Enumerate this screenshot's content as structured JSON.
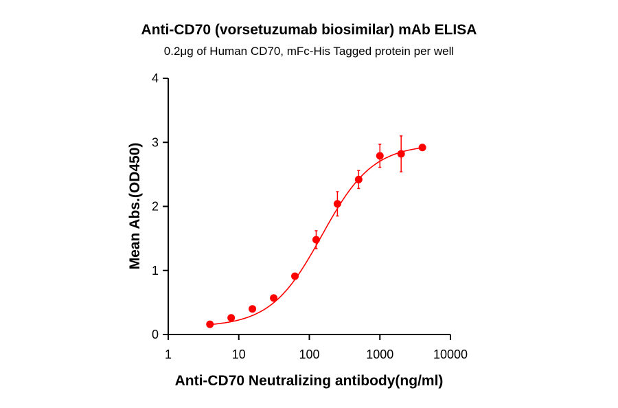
{
  "chart_data": {
    "type": "scatter",
    "title": "Anti-CD70 (vorsetuzumab biosimilar) mAb ELISA",
    "subtitle": "0.2μg of Human CD70, mFc-His Tagged protein per well",
    "xlabel": "Anti-CD70 Neutralizing antibody(ng/ml)",
    "ylabel": "Mean Abs.(OD450)",
    "x_scale": "log",
    "xlim": [
      1,
      10000
    ],
    "ylim": [
      0,
      4
    ],
    "x_ticks": [
      "1",
      "10",
      "100",
      "1000",
      "10000"
    ],
    "y_ticks": [
      "0",
      "1",
      "2",
      "3",
      "4"
    ],
    "grid": false,
    "color": "#ff0000",
    "x": [
      3.9,
      7.8,
      15.6,
      31.25,
      62.5,
      125,
      250,
      500,
      1000,
      2000,
      4000
    ],
    "y": [
      0.16,
      0.26,
      0.4,
      0.57,
      0.91,
      1.48,
      2.04,
      2.42,
      2.79,
      2.82,
      2.92
    ],
    "error": [
      0.02,
      0.02,
      0.02,
      0.03,
      0.03,
      0.14,
      0.19,
      0.14,
      0.18,
      0.28,
      0.04
    ],
    "fit": {
      "model": "4PL",
      "bottom": 0.12,
      "top": 2.97,
      "ec50": 150,
      "hill": 1.2
    }
  }
}
